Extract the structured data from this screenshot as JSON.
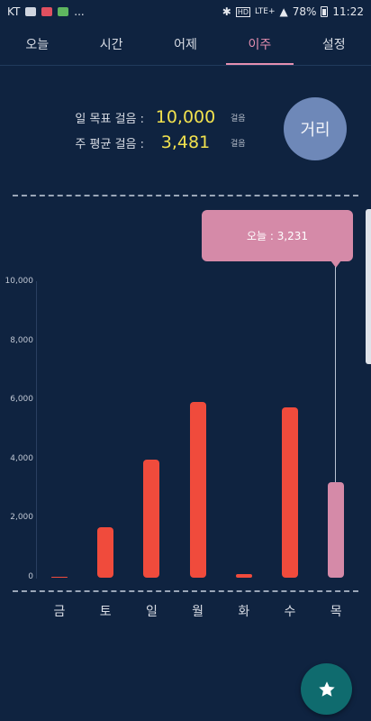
{
  "status_bar": {
    "carrier": "KT",
    "more": "...",
    "network": "LTE+",
    "battery": "78%",
    "time": "11:22"
  },
  "tabs": [
    {
      "label": "오늘",
      "active": false
    },
    {
      "label": "시간",
      "active": false
    },
    {
      "label": "어제",
      "active": false
    },
    {
      "label": "이주",
      "active": true
    },
    {
      "label": "설정",
      "active": false
    }
  ],
  "summary": {
    "daily_goal_label": "일 목표 걸음 :",
    "daily_goal_value": "10,000",
    "weekly_avg_label": "주 평균 걸음 :",
    "weekly_avg_value": "3,481",
    "unit": "걸음"
  },
  "distance_button": "거리",
  "tooltip": "오늘 : 3,231",
  "fab_icon": "star-icon",
  "colors": {
    "background": "#0f2340",
    "bar": "#f04b3c",
    "today_bar": "#d58aa8",
    "accent": "#e58fb0",
    "value": "#f2e24e"
  },
  "chart_data": {
    "type": "bar",
    "categories": [
      "금",
      "토",
      "일",
      "월",
      "화",
      "수",
      "목"
    ],
    "values": [
      0,
      1700,
      4000,
      5950,
      120,
      5750,
      3231
    ],
    "y_ticks": [
      "0",
      "2,000",
      "4,000",
      "6,000",
      "8,000",
      "10,000"
    ],
    "ylim": [
      0,
      10000
    ],
    "highlight_index": 6
  }
}
